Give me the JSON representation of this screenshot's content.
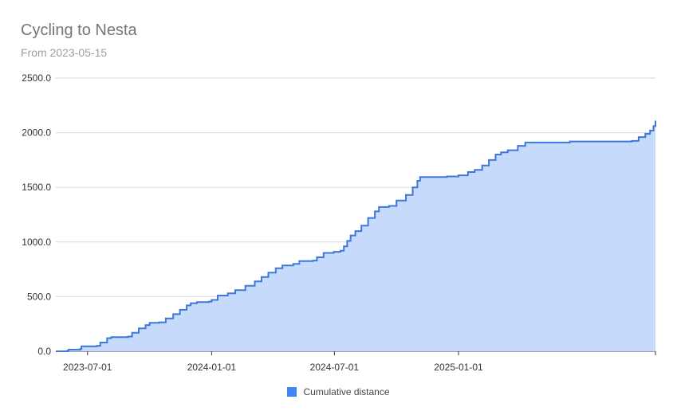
{
  "chart_data": {
    "type": "area",
    "title": "Cycling to Nesta",
    "subtitle": "From 2023-05-15",
    "xlabel": "",
    "ylabel": "",
    "x_range": [
      "2023-05-15",
      "2025-10-20"
    ],
    "ylim": [
      0,
      2500
    ],
    "y_ticks": [
      "0.0",
      "500.0",
      "1000.0",
      "1500.0",
      "2000.0",
      "2500.0"
    ],
    "x_ticks": [
      "2023-07-01",
      "2024-01-01",
      "2024-07-01",
      "2025-01-01"
    ],
    "grid": true,
    "legend_position": "bottom",
    "colors": {
      "line": "#3c78d8",
      "fill": "#c6dafc",
      "grid": "#d9d9d9",
      "legend": "#4285f4"
    },
    "series": [
      {
        "name": "Cumulative distance",
        "points": [
          [
            "2023-05-15",
            0
          ],
          [
            "2023-06-01",
            5
          ],
          [
            "2023-06-03",
            15
          ],
          [
            "2023-06-20",
            20
          ],
          [
            "2023-06-22",
            45
          ],
          [
            "2023-07-15",
            50
          ],
          [
            "2023-07-20",
            80
          ],
          [
            "2023-07-30",
            120
          ],
          [
            "2023-08-05",
            130
          ],
          [
            "2023-08-30",
            135
          ],
          [
            "2023-09-05",
            170
          ],
          [
            "2023-09-15",
            210
          ],
          [
            "2023-09-25",
            240
          ],
          [
            "2023-10-01",
            260
          ],
          [
            "2023-10-15",
            265
          ],
          [
            "2023-10-25",
            300
          ],
          [
            "2023-11-05",
            340
          ],
          [
            "2023-11-15",
            380
          ],
          [
            "2023-11-25",
            420
          ],
          [
            "2023-12-01",
            440
          ],
          [
            "2023-12-10",
            450
          ],
          [
            "2023-12-28",
            455
          ],
          [
            "2024-01-01",
            470
          ],
          [
            "2024-01-10",
            510
          ],
          [
            "2024-01-25",
            530
          ],
          [
            "2024-02-05",
            560
          ],
          [
            "2024-02-20",
            600
          ],
          [
            "2024-03-05",
            640
          ],
          [
            "2024-03-15",
            680
          ],
          [
            "2024-03-25",
            720
          ],
          [
            "2024-04-05",
            760
          ],
          [
            "2024-04-15",
            785
          ],
          [
            "2024-05-01",
            800
          ],
          [
            "2024-05-10",
            825
          ],
          [
            "2024-05-30",
            830
          ],
          [
            "2024-06-05",
            860
          ],
          [
            "2024-06-15",
            900
          ],
          [
            "2024-06-30",
            910
          ],
          [
            "2024-07-10",
            920
          ],
          [
            "2024-07-15",
            960
          ],
          [
            "2024-07-20",
            1010
          ],
          [
            "2024-07-25",
            1060
          ],
          [
            "2024-08-01",
            1100
          ],
          [
            "2024-08-10",
            1150
          ],
          [
            "2024-08-20",
            1220
          ],
          [
            "2024-08-30",
            1280
          ],
          [
            "2024-09-05",
            1320
          ],
          [
            "2024-09-20",
            1330
          ],
          [
            "2024-10-01",
            1380
          ],
          [
            "2024-10-15",
            1430
          ],
          [
            "2024-10-25",
            1500
          ],
          [
            "2024-11-01",
            1560
          ],
          [
            "2024-11-05",
            1595
          ],
          [
            "2024-12-15",
            1600
          ],
          [
            "2025-01-01",
            1610
          ],
          [
            "2025-01-15",
            1640
          ],
          [
            "2025-01-25",
            1660
          ],
          [
            "2025-02-05",
            1700
          ],
          [
            "2025-02-15",
            1750
          ],
          [
            "2025-02-25",
            1800
          ],
          [
            "2025-03-05",
            1820
          ],
          [
            "2025-03-15",
            1840
          ],
          [
            "2025-03-30",
            1880
          ],
          [
            "2025-04-10",
            1910
          ],
          [
            "2025-06-15",
            1920
          ],
          [
            "2025-09-15",
            1925
          ],
          [
            "2025-09-25",
            1960
          ],
          [
            "2025-10-05",
            1990
          ],
          [
            "2025-10-12",
            2020
          ],
          [
            "2025-10-17",
            2060
          ],
          [
            "2025-10-20",
            2110
          ]
        ]
      }
    ]
  }
}
